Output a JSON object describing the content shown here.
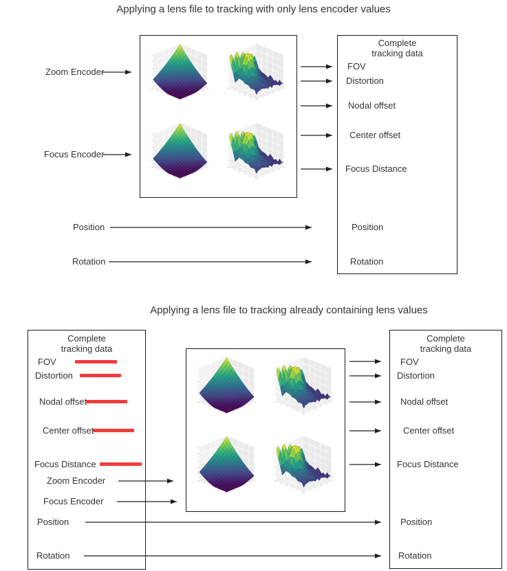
{
  "colors": {
    "text": "#333333",
    "border": "#1a1a1a",
    "arrow": "#1f1f1f",
    "strike": "#f23b3b"
  },
  "diagram1": {
    "title": "Applying a lens file to tracking with only lens encoder values",
    "inputs": {
      "zoom_encoder": "Zoom Encoder",
      "focus_encoder": "Focus Encoder",
      "position": "Position",
      "rotation": "Rotation"
    },
    "lens_box": {
      "plot_types": [
        "3d-surface-smooth",
        "3d-surface-spiky",
        "3d-surface-smooth",
        "3d-surface-spiky"
      ],
      "colormap": "viridis"
    },
    "tracking_box": {
      "header": [
        "Complete",
        "tracking data"
      ],
      "items": [
        "FOV",
        "Distortion",
        "Nodal offset",
        "Center offset",
        "Focus Distance",
        "Position",
        "Rotation"
      ]
    }
  },
  "diagram2": {
    "title": "Applying a lens file to tracking already containing lens values",
    "source_box": {
      "header": [
        "Complete",
        "tracking data"
      ],
      "items": [
        "FOV",
        "Distortion",
        "Nodal offset",
        "Center offset",
        "Focus Distance",
        "Zoom Encoder",
        "Focus Encoder",
        "Position",
        "Rotation"
      ],
      "struck_out_items": [
        "FOV",
        "Distortion",
        "Nodal offset",
        "Center offset",
        "Focus Distance"
      ]
    },
    "lens_box": {
      "plot_types": [
        "3d-surface-smooth",
        "3d-surface-spiky",
        "3d-surface-smooth",
        "3d-surface-spiky"
      ],
      "colormap": "viridis"
    },
    "result_box": {
      "header": [
        "Complete",
        "tracking data"
      ],
      "items": [
        "FOV",
        "Distortion",
        "Nodal offset",
        "Center offset",
        "Focus Distance",
        "Position",
        "Rotation"
      ]
    }
  }
}
